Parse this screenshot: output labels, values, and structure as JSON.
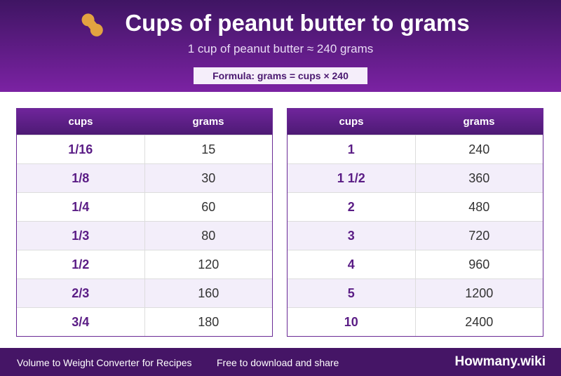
{
  "header": {
    "title": "Cups of peanut butter to grams",
    "subtitle": "1 cup of peanut butter ≈ 240 grams",
    "formula": "Formula: grams = cups × 240"
  },
  "tables": [
    {
      "columns": [
        "cups",
        "grams"
      ],
      "rows": [
        [
          "1/16",
          15
        ],
        [
          "1/8",
          30
        ],
        [
          "1/4",
          60
        ],
        [
          "1/3",
          80
        ],
        [
          "1/2",
          120
        ],
        [
          "2/3",
          160
        ],
        [
          "3/4",
          180
        ]
      ]
    },
    {
      "columns": [
        "cups",
        "grams"
      ],
      "rows": [
        [
          "1",
          240
        ],
        [
          "1 1/2",
          360
        ],
        [
          "2",
          480
        ],
        [
          "3",
          720
        ],
        [
          "4",
          960
        ],
        [
          "5",
          1200
        ],
        [
          "10",
          2400
        ]
      ]
    }
  ],
  "footer": {
    "left": "Volume to Weight Converter for Recipes",
    "middle": "Free to download and share",
    "brand": "Howmany.wiki"
  }
}
